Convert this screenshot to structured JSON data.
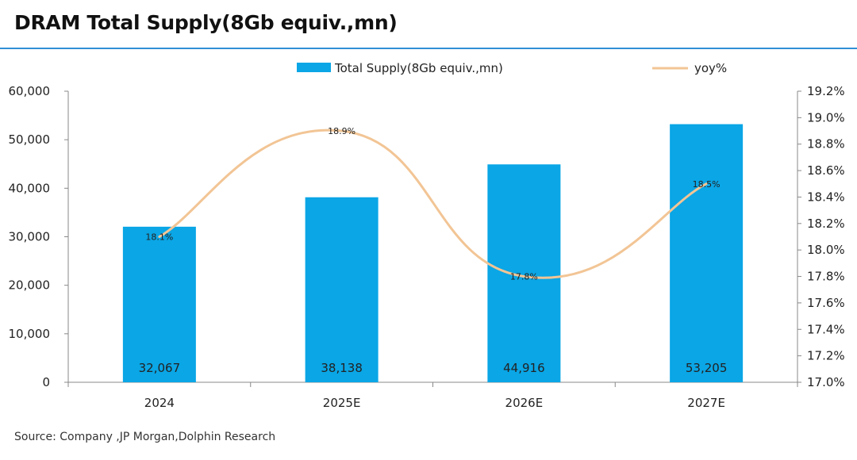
{
  "title": "DRAM Total Supply(8Gb equiv.,mn)",
  "source": "Source:  Company ,JP Morgan,Dolphin Research",
  "colors": {
    "bar": "#0aa6e6",
    "line": "#f2c595",
    "accent_rule": "#2f8fd6"
  },
  "chart_data": {
    "type": "bar",
    "categories": [
      "2024",
      "2025E",
      "2026E",
      "2027E"
    ],
    "series": [
      {
        "name": "Total Supply(8Gb equiv.,mn)",
        "type": "bar",
        "axis": "left",
        "values": [
          32067,
          38138,
          44916,
          53205
        ],
        "value_labels": [
          "32,067",
          "38,138",
          "44,916",
          "53,205"
        ]
      },
      {
        "name": "yoy%",
        "type": "line",
        "axis": "right",
        "smooth": true,
        "values": [
          18.1,
          18.9,
          17.8,
          18.5
        ],
        "value_labels": [
          "18.1%",
          "18.9%",
          "17.8%",
          "18.5%"
        ]
      }
    ],
    "y_left": {
      "min": 0,
      "max": 60000,
      "step": 10000,
      "tick_labels": [
        "0",
        "10,000",
        "20,000",
        "30,000",
        "40,000",
        "50,000",
        "60,000"
      ]
    },
    "y_right": {
      "min": 17.0,
      "max": 19.2,
      "step": 0.2,
      "tick_labels": [
        "17.0%",
        "17.2%",
        "17.4%",
        "17.6%",
        "17.8%",
        "18.0%",
        "18.2%",
        "18.4%",
        "18.6%",
        "18.8%",
        "19.0%",
        "19.2%"
      ]
    },
    "legend_position": "top",
    "grid": false
  }
}
